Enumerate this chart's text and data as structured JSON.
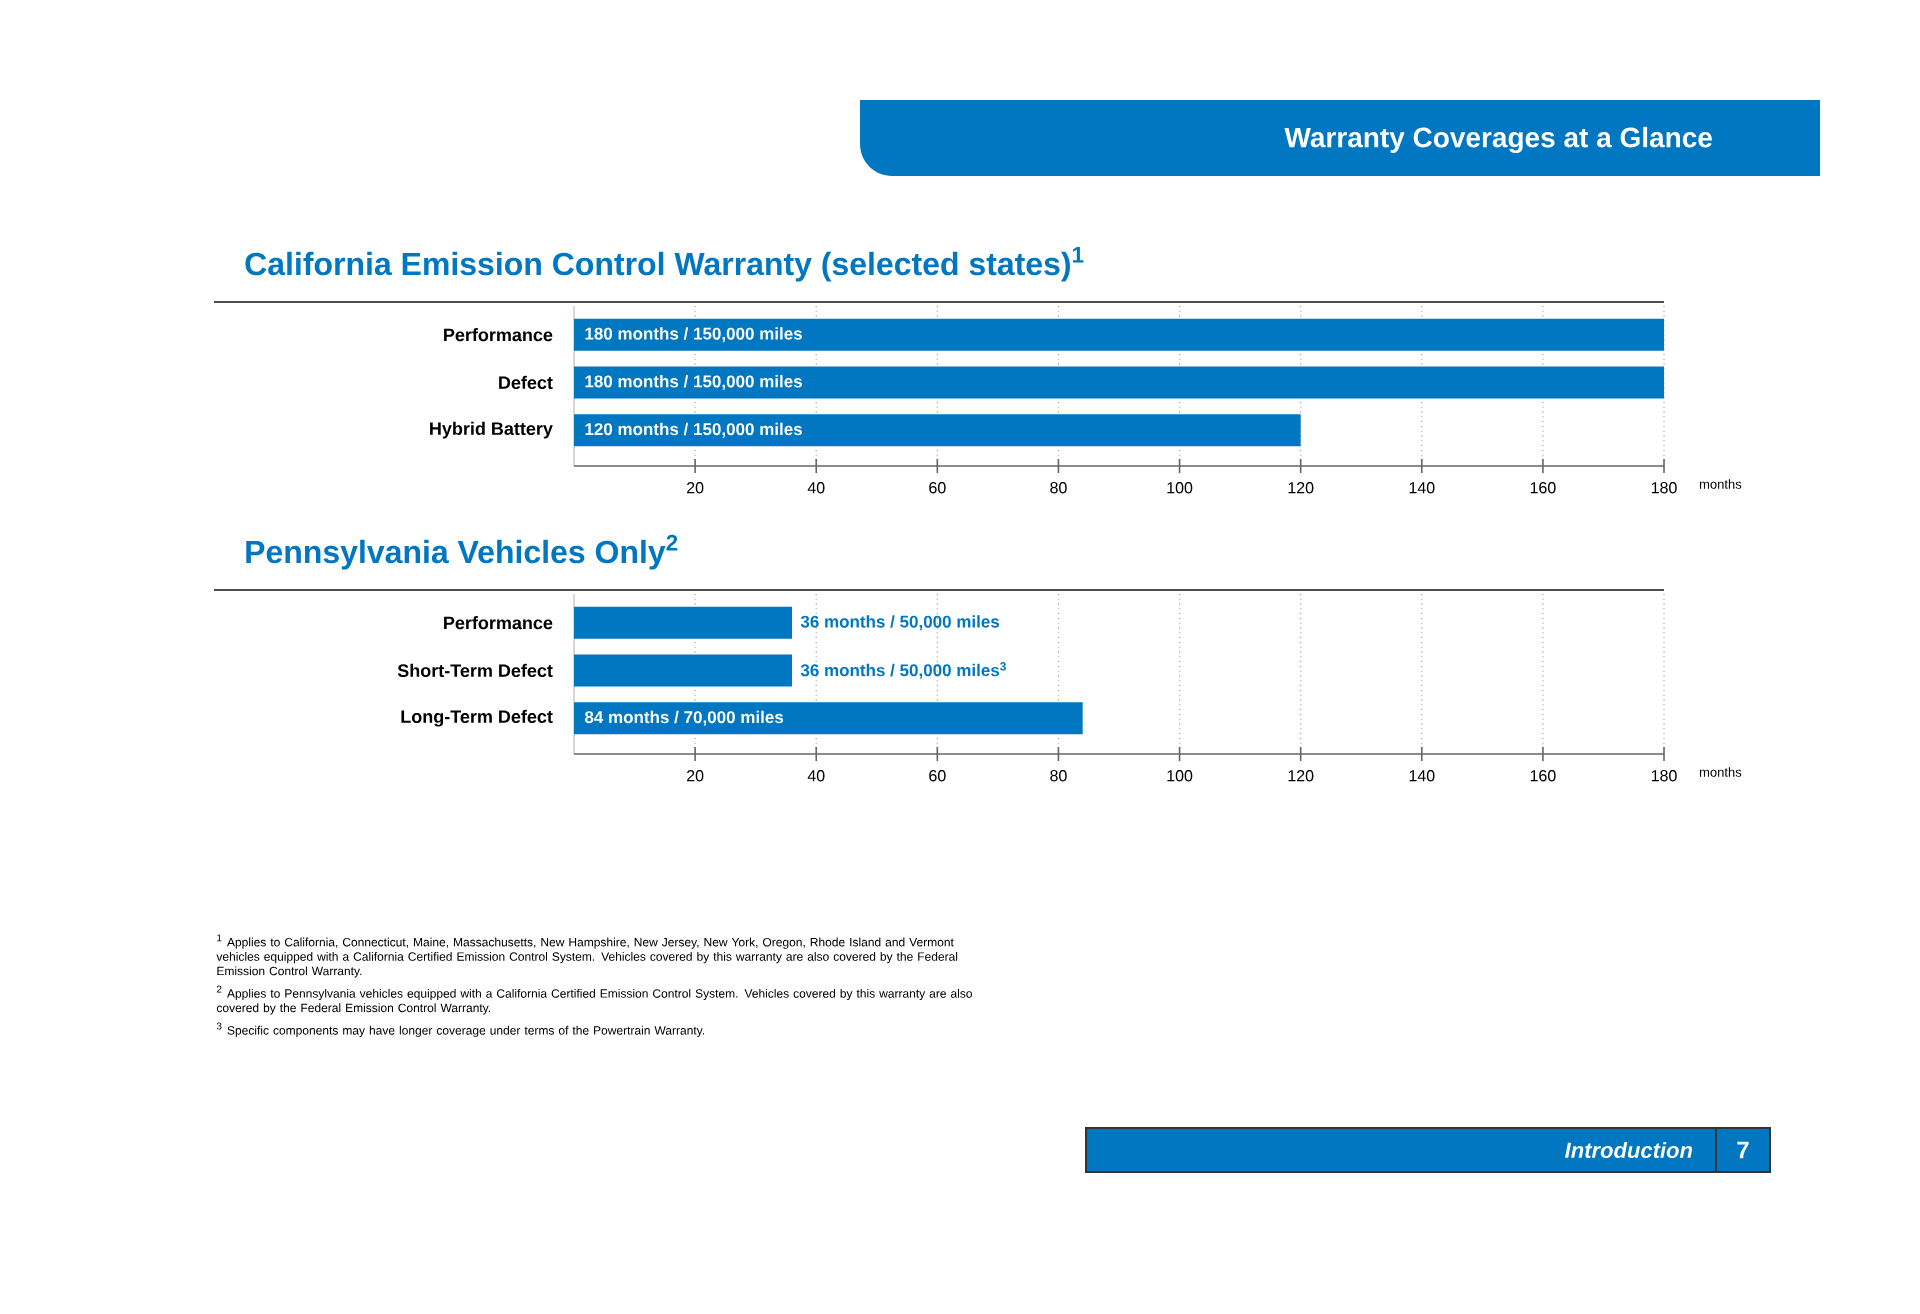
{
  "chart_data": [
    {
      "type": "bar",
      "orientation": "horizontal",
      "title": "California Emission Control Warranty (selected states)$^{1}$",
      "categories": [
        "Performance",
        "Defect",
        "Hybrid Battery"
      ],
      "values": [
        180,
        180,
        120
      ],
      "color": "#0077c0",
      "value_labels": [
        "180 months  /  150,000 miles",
        "180 months  /  150,000 miles",
        "120 months  /  150,000 miles"
      ],
      "xlim": [
        0,
        180
      ],
      "xticks": [
        20,
        40,
        60,
        80,
        100,
        120,
        140,
        160,
        180
      ],
      "xlabel": "months",
      "grid": "x",
      "annotations": [
        "Warranty Coverages at a Glance",
        "Introduction",
        "7"
      ]
    },
    {
      "type": "bar",
      "orientation": "horizontal",
      "title": "Pennsylvania Vehicles Only$^{2}$",
      "categories": [
        "Performance",
        "Short-Term Defect",
        "Long-Term Defect"
      ],
      "values": [
        36,
        36,
        84
      ],
      "color": "#0077c0",
      "value_labels": [
        "36 months  /  50,000 miles",
        "36 months  /  50,000 miles$^{3}$",
        "84 months  /  70,000 miles"
      ],
      "xlim": [
        0,
        180
      ],
      "xticks": [
        20,
        40,
        60,
        80,
        100,
        120,
        140,
        160,
        180
      ],
      "xlabel": "months",
      "grid": "x",
      "annotations": [
        "$^{1}$ Applies to California, Connecticut, Maine, Massachusetts, New Hampshire, New Jersey, New York, Oregon, Rhode Island and Vermont vehicles equipped with a California Certified Emission Control System. Vehicles covered by this warranty are also covered by the Federal Emission Control Warranty.",
        "$^{2}$ Applies to Pennsylvania vehicles equipped with a California Certified Emission Control System. Vehicles covered by this warranty are also covered by the Federal Emission Control Warranty.",
        "$^{3}$ Specific components may have longer coverage under terms of the Powertrain Warranty."
      ]
    }
  ]
}
